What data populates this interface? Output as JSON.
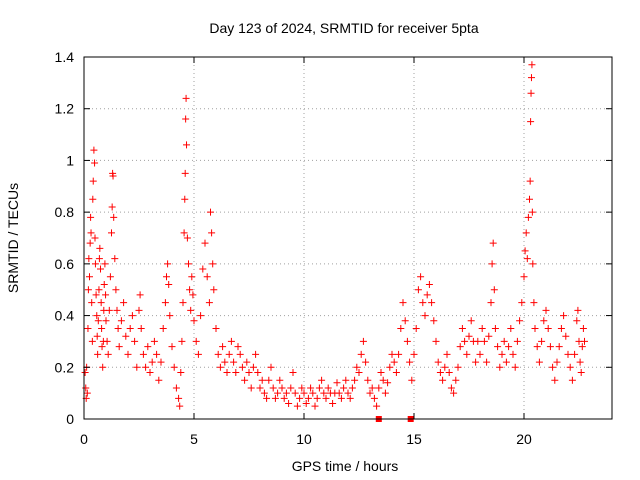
{
  "chart_data": {
    "type": "scatter",
    "title": "Day 123 of 2024, SRMTID for receiver 5pta",
    "xlabel": "GPS time / hours",
    "ylabel": "SRMTID / TECUs",
    "xlim": [
      0,
      24
    ],
    "ylim": [
      0,
      1.4
    ],
    "xticks": [
      0,
      5,
      10,
      15,
      20
    ],
    "xtick_labels": [
      "0",
      "5",
      "10",
      "15",
      "20"
    ],
    "yticks": [
      0,
      0.2,
      0.4,
      0.6,
      0.8,
      1,
      1.2,
      1.4
    ],
    "ytick_labels": [
      "0",
      "0.2",
      "0.4",
      "0.6",
      "0.8",
      "1",
      "1.2",
      "1.4"
    ],
    "grid": true,
    "marker": "plus",
    "color": "#ff0000",
    "series": [
      {
        "name": "SRMTID",
        "points": [
          [
            0.05,
            0.18
          ],
          [
            0.08,
            0.12
          ],
          [
            0.1,
            0.08
          ],
          [
            0.12,
            0.2
          ],
          [
            0.15,
            0.1
          ],
          [
            0.18,
            0.35
          ],
          [
            0.2,
            0.5
          ],
          [
            0.22,
            0.62
          ],
          [
            0.25,
            0.55
          ],
          [
            0.28,
            0.68
          ],
          [
            0.3,
            0.78
          ],
          [
            0.32,
            0.72
          ],
          [
            0.35,
            0.45
          ],
          [
            0.38,
            0.3
          ],
          [
            0.4,
            0.85
          ],
          [
            0.42,
            0.92
          ],
          [
            0.45,
            1.04
          ],
          [
            0.48,
            0.99
          ],
          [
            0.5,
            0.7
          ],
          [
            0.52,
            0.6
          ],
          [
            0.55,
            0.48
          ],
          [
            0.58,
            0.4
          ],
          [
            0.6,
            0.32
          ],
          [
            0.62,
            0.25
          ],
          [
            0.65,
            0.38
          ],
          [
            0.68,
            0.5
          ],
          [
            0.7,
            0.62
          ],
          [
            0.72,
            0.66
          ],
          [
            0.75,
            0.58
          ],
          [
            0.78,
            0.45
          ],
          [
            0.8,
            0.35
          ],
          [
            0.82,
            0.28
          ],
          [
            0.85,
            0.2
          ],
          [
            0.88,
            0.3
          ],
          [
            0.9,
            0.42
          ],
          [
            0.92,
            0.52
          ],
          [
            0.95,
            0.6
          ],
          [
            0.98,
            0.48
          ],
          [
            1.0,
            0.38
          ],
          [
            1.05,
            0.3
          ],
          [
            1.1,
            0.25
          ],
          [
            1.15,
            0.42
          ],
          [
            1.2,
            0.55
          ],
          [
            1.25,
            0.72
          ],
          [
            1.28,
            0.82
          ],
          [
            1.3,
            0.95
          ],
          [
            1.32,
            0.94
          ],
          [
            1.35,
            0.78
          ],
          [
            1.4,
            0.62
          ],
          [
            1.45,
            0.5
          ],
          [
            1.5,
            0.42
          ],
          [
            1.55,
            0.35
          ],
          [
            1.6,
            0.28
          ],
          [
            1.7,
            0.38
          ],
          [
            1.8,
            0.45
          ],
          [
            1.9,
            0.32
          ],
          [
            2.0,
            0.25
          ],
          [
            2.1,
            0.35
          ],
          [
            2.2,
            0.4
          ],
          [
            2.3,
            0.3
          ],
          [
            2.4,
            0.2
          ],
          [
            2.5,
            0.42
          ],
          [
            2.55,
            0.48
          ],
          [
            2.6,
            0.35
          ],
          [
            2.7,
            0.25
          ],
          [
            2.8,
            0.2
          ],
          [
            2.9,
            0.28
          ],
          [
            3.0,
            0.18
          ],
          [
            3.1,
            0.22
          ],
          [
            3.2,
            0.3
          ],
          [
            3.3,
            0.25
          ],
          [
            3.4,
            0.15
          ],
          [
            3.5,
            0.22
          ],
          [
            3.6,
            0.35
          ],
          [
            3.7,
            0.45
          ],
          [
            3.75,
            0.55
          ],
          [
            3.8,
            0.6
          ],
          [
            3.85,
            0.52
          ],
          [
            3.9,
            0.4
          ],
          [
            4.0,
            0.28
          ],
          [
            4.1,
            0.2
          ],
          [
            4.2,
            0.12
          ],
          [
            4.3,
            0.08
          ],
          [
            4.35,
            0.05
          ],
          [
            4.4,
            0.18
          ],
          [
            4.45,
            0.3
          ],
          [
            4.5,
            0.45
          ],
          [
            4.55,
            0.72
          ],
          [
            4.58,
            0.85
          ],
          [
            4.6,
            0.95
          ],
          [
            4.62,
            1.16
          ],
          [
            4.64,
            1.24
          ],
          [
            4.66,
            1.06
          ],
          [
            4.7,
            0.7
          ],
          [
            4.75,
            0.6
          ],
          [
            4.8,
            0.5
          ],
          [
            4.85,
            0.42
          ],
          [
            4.9,
            0.55
          ],
          [
            4.95,
            0.48
          ],
          [
            5.0,
            0.38
          ],
          [
            5.1,
            0.3
          ],
          [
            5.2,
            0.25
          ],
          [
            5.3,
            0.4
          ],
          [
            5.4,
            0.58
          ],
          [
            5.5,
            0.68
          ],
          [
            5.6,
            0.55
          ],
          [
            5.7,
            0.45
          ],
          [
            5.75,
            0.8
          ],
          [
            5.8,
            0.72
          ],
          [
            5.85,
            0.6
          ],
          [
            5.9,
            0.5
          ],
          [
            6.0,
            0.35
          ],
          [
            6.1,
            0.25
          ],
          [
            6.2,
            0.2
          ],
          [
            6.3,
            0.28
          ],
          [
            6.4,
            0.22
          ],
          [
            6.5,
            0.18
          ],
          [
            6.6,
            0.25
          ],
          [
            6.7,
            0.3
          ],
          [
            6.8,
            0.22
          ],
          [
            6.9,
            0.18
          ],
          [
            7.0,
            0.28
          ],
          [
            7.1,
            0.25
          ],
          [
            7.2,
            0.2
          ],
          [
            7.3,
            0.15
          ],
          [
            7.4,
            0.22
          ],
          [
            7.5,
            0.18
          ],
          [
            7.6,
            0.12
          ],
          [
            7.7,
            0.2
          ],
          [
            7.8,
            0.25
          ],
          [
            7.9,
            0.18
          ],
          [
            8.0,
            0.12
          ],
          [
            8.1,
            0.15
          ],
          [
            8.2,
            0.1
          ],
          [
            8.3,
            0.08
          ],
          [
            8.4,
            0.15
          ],
          [
            8.5,
            0.2
          ],
          [
            8.6,
            0.12
          ],
          [
            8.7,
            0.08
          ],
          [
            8.8,
            0.1
          ],
          [
            8.9,
            0.15
          ],
          [
            9.0,
            0.12
          ],
          [
            9.1,
            0.08
          ],
          [
            9.2,
            0.1
          ],
          [
            9.3,
            0.06
          ],
          [
            9.4,
            0.12
          ],
          [
            9.5,
            0.18
          ],
          [
            9.6,
            0.1
          ],
          [
            9.7,
            0.05
          ],
          [
            9.8,
            0.08
          ],
          [
            9.9,
            0.12
          ],
          [
            10.0,
            0.1
          ],
          [
            10.1,
            0.06
          ],
          [
            10.2,
            0.08
          ],
          [
            10.3,
            0.12
          ],
          [
            10.4,
            0.1
          ],
          [
            10.5,
            0.05
          ],
          [
            10.6,
            0.08
          ],
          [
            10.7,
            0.12
          ],
          [
            10.8,
            0.15
          ],
          [
            10.9,
            0.1
          ],
          [
            11.0,
            0.08
          ],
          [
            11.1,
            0.12
          ],
          [
            11.2,
            0.1
          ],
          [
            11.3,
            0.06
          ],
          [
            11.4,
            0.1
          ],
          [
            11.5,
            0.14
          ],
          [
            11.6,
            0.1
          ],
          [
            11.7,
            0.08
          ],
          [
            11.8,
            0.12
          ],
          [
            11.9,
            0.15
          ],
          [
            12.0,
            0.1
          ],
          [
            12.1,
            0.08
          ],
          [
            12.2,
            0.12
          ],
          [
            12.3,
            0.15
          ],
          [
            12.4,
            0.2
          ],
          [
            12.5,
            0.18
          ],
          [
            12.6,
            0.25
          ],
          [
            12.7,
            0.3
          ],
          [
            12.8,
            0.22
          ],
          [
            12.9,
            0.15
          ],
          [
            13.0,
            0.1
          ],
          [
            13.1,
            0.12
          ],
          [
            13.2,
            0.08
          ],
          [
            13.3,
            0.05
          ],
          [
            13.4,
            0.12
          ],
          [
            13.5,
            0.18
          ],
          [
            13.6,
            0.15
          ],
          [
            13.7,
            0.1
          ],
          [
            13.8,
            0.14
          ],
          [
            13.9,
            0.2
          ],
          [
            14.0,
            0.25
          ],
          [
            14.1,
            0.22
          ],
          [
            14.2,
            0.18
          ],
          [
            14.3,
            0.25
          ],
          [
            14.4,
            0.35
          ],
          [
            14.5,
            0.45
          ],
          [
            14.6,
            0.38
          ],
          [
            14.7,
            0.3
          ],
          [
            14.8,
            0.22
          ],
          [
            14.9,
            0.15
          ],
          [
            15.0,
            0.25
          ],
          [
            15.1,
            0.35
          ],
          [
            15.2,
            0.5
          ],
          [
            15.3,
            0.55
          ],
          [
            15.4,
            0.45
          ],
          [
            15.5,
            0.4
          ],
          [
            15.6,
            0.48
          ],
          [
            15.7,
            0.52
          ],
          [
            15.8,
            0.45
          ],
          [
            15.9,
            0.38
          ],
          [
            16.0,
            0.3
          ],
          [
            16.1,
            0.22
          ],
          [
            16.2,
            0.18
          ],
          [
            16.3,
            0.15
          ],
          [
            16.4,
            0.2
          ],
          [
            16.5,
            0.25
          ],
          [
            16.6,
            0.18
          ],
          [
            16.7,
            0.12
          ],
          [
            16.8,
            0.1
          ],
          [
            16.9,
            0.15
          ],
          [
            17.0,
            0.2
          ],
          [
            17.1,
            0.28
          ],
          [
            17.2,
            0.35
          ],
          [
            17.3,
            0.3
          ],
          [
            17.4,
            0.25
          ],
          [
            17.5,
            0.32
          ],
          [
            17.6,
            0.38
          ],
          [
            17.7,
            0.3
          ],
          [
            17.8,
            0.22
          ],
          [
            17.9,
            0.3
          ],
          [
            18.0,
            0.25
          ],
          [
            18.1,
            0.35
          ],
          [
            18.2,
            0.3
          ],
          [
            18.3,
            0.22
          ],
          [
            18.4,
            0.32
          ],
          [
            18.5,
            0.45
          ],
          [
            18.55,
            0.6
          ],
          [
            18.6,
            0.68
          ],
          [
            18.65,
            0.5
          ],
          [
            18.7,
            0.35
          ],
          [
            18.8,
            0.28
          ],
          [
            18.9,
            0.2
          ],
          [
            19.0,
            0.25
          ],
          [
            19.1,
            0.3
          ],
          [
            19.2,
            0.22
          ],
          [
            19.3,
            0.28
          ],
          [
            19.4,
            0.35
          ],
          [
            19.5,
            0.25
          ],
          [
            19.6,
            0.2
          ],
          [
            19.7,
            0.3
          ],
          [
            19.8,
            0.38
          ],
          [
            19.9,
            0.45
          ],
          [
            20.0,
            0.55
          ],
          [
            20.05,
            0.65
          ],
          [
            20.1,
            0.72
          ],
          [
            20.15,
            0.62
          ],
          [
            20.2,
            0.78
          ],
          [
            20.25,
            0.85
          ],
          [
            20.28,
            0.92
          ],
          [
            20.3,
            1.15
          ],
          [
            20.32,
            1.26
          ],
          [
            20.34,
            1.32
          ],
          [
            20.36,
            1.37
          ],
          [
            20.38,
            0.8
          ],
          [
            20.4,
            0.6
          ],
          [
            20.45,
            0.45
          ],
          [
            20.5,
            0.35
          ],
          [
            20.6,
            0.28
          ],
          [
            20.7,
            0.22
          ],
          [
            20.8,
            0.3
          ],
          [
            20.9,
            0.38
          ],
          [
            21.0,
            0.42
          ],
          [
            21.1,
            0.35
          ],
          [
            21.2,
            0.28
          ],
          [
            21.3,
            0.2
          ],
          [
            21.4,
            0.15
          ],
          [
            21.5,
            0.22
          ],
          [
            21.6,
            0.28
          ],
          [
            21.7,
            0.35
          ],
          [
            21.8,
            0.4
          ],
          [
            21.9,
            0.32
          ],
          [
            22.0,
            0.25
          ],
          [
            22.1,
            0.2
          ],
          [
            22.2,
            0.15
          ],
          [
            22.3,
            0.25
          ],
          [
            22.4,
            0.38
          ],
          [
            22.45,
            0.42
          ],
          [
            22.5,
            0.3
          ],
          [
            22.55,
            0.22
          ],
          [
            22.6,
            0.18
          ],
          [
            22.65,
            0.28
          ],
          [
            22.7,
            0.35
          ],
          [
            22.75,
            0.3
          ]
        ],
        "square_markers": [
          [
            13.4,
            0.0
          ],
          [
            14.85,
            0.0
          ]
        ]
      }
    ]
  }
}
